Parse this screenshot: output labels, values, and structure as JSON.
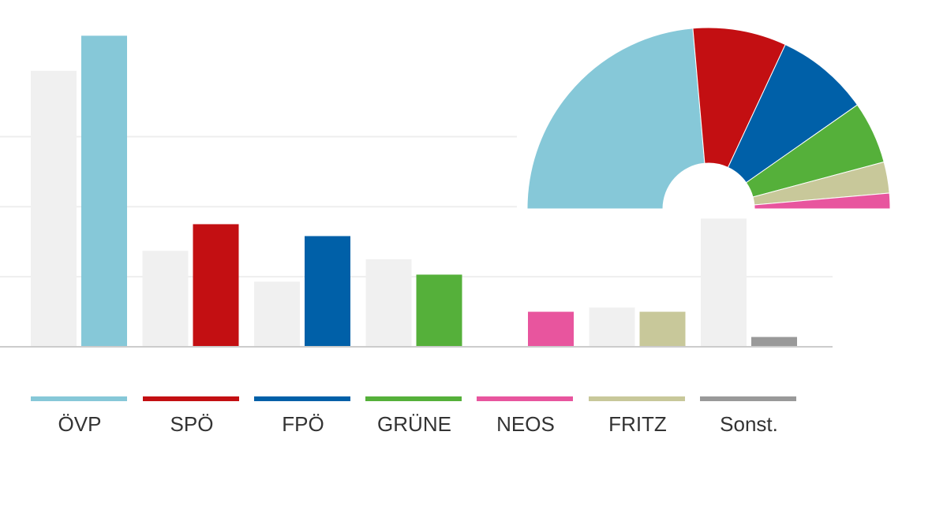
{
  "chart_data": [
    {
      "type": "bar",
      "title": "",
      "xlabel": "",
      "ylabel": "",
      "ylim": [
        0,
        45
      ],
      "grid": true,
      "categories": [
        "ÖVP",
        "SPÖ",
        "FPÖ",
        "GRÜNE",
        "NEOS",
        "FRITZ",
        "Sonst."
      ],
      "colors": [
        "#86c8d8",
        "#c30f12",
        "#0060a8",
        "#55b03a",
        "#e8559e",
        "#c8c89a",
        "#999999"
      ],
      "previous_color": "#f0f0f0",
      "series": [
        {
          "values": [
            39.4,
            13.7,
            9.3,
            12.5,
            0,
            5.6,
            18.3
          ]
        },
        {
          "values": [
            44.4,
            17.5,
            15.8,
            10.3,
            5.0,
            5.0,
            1.4
          ]
        }
      ]
    },
    {
      "type": "pie",
      "style": "semicircle",
      "labels": [
        "ÖVP",
        "SPÖ",
        "FPÖ",
        "GRÜNE",
        "FRITZ",
        "NEOS"
      ],
      "values": [
        17,
        6,
        6,
        4,
        2,
        1
      ],
      "colors": [
        "#86c8d8",
        "#c30f12",
        "#0060a8",
        "#55b03a",
        "#c8c89a",
        "#e8559e"
      ]
    }
  ],
  "legend": [
    {
      "label": "ÖVP",
      "color": "#86c8d8"
    },
    {
      "label": "SPÖ",
      "color": "#c30f12"
    },
    {
      "label": "FPÖ",
      "color": "#0060a8"
    },
    {
      "label": "GRÜNE",
      "color": "#55b03a"
    },
    {
      "label": "NEOS",
      "color": "#e8559e"
    },
    {
      "label": "FRITZ",
      "color": "#c8c89a"
    },
    {
      "label": "Sonst.",
      "color": "#999999"
    }
  ]
}
